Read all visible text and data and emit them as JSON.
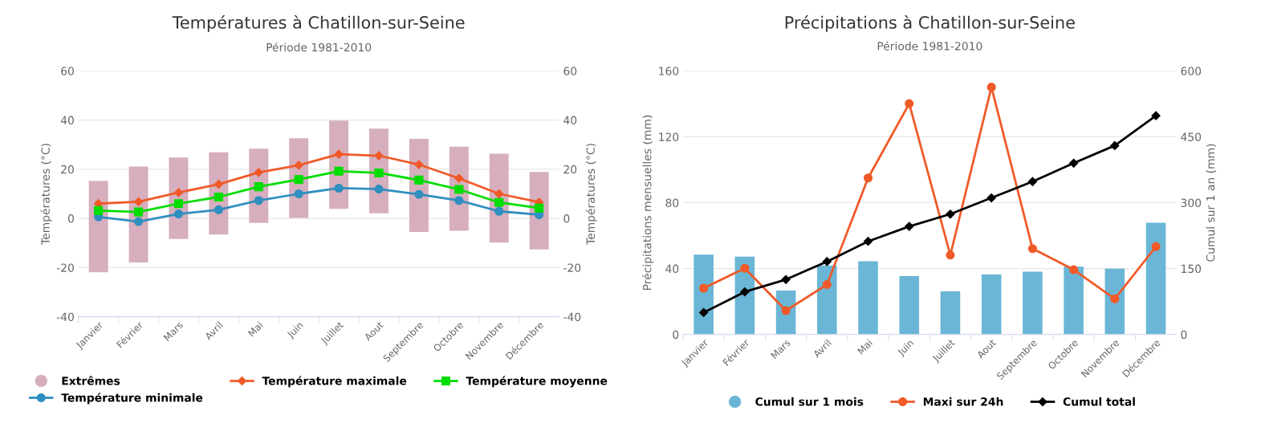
{
  "chart_data": [
    {
      "type": "bar",
      "title": "Températures à Chatillon-sur-Seine",
      "subtitle": "Période 1981-2010",
      "ylabel": "Températures (°C)",
      "y2label": "Températures (°C)",
      "categories": [
        "Janvier",
        "Février",
        "Mars",
        "Avril",
        "Mai",
        "Juin",
        "Juillet",
        "Aout",
        "Septembre",
        "Octobre",
        "Novembre",
        "Décembre"
      ],
      "ylim": [
        -40,
        60
      ],
      "yticks": [
        -40,
        -20,
        0,
        20,
        40,
        60
      ],
      "y2lim": [
        -40,
        60
      ],
      "y2ticks": [
        -40,
        -20,
        0,
        20,
        40,
        60
      ],
      "grid": "y",
      "legend": "bottom",
      "series": [
        {
          "name": "Extrêmes",
          "color": "#d6aebd",
          "base": [
            -21.9,
            -17.9,
            -8.4,
            -6.6,
            -1.8,
            0.2,
            3.9,
            2.1,
            -5.5,
            -5.0,
            -9.8,
            -12.6
          ],
          "values": [
            37.1,
            39.0,
            33.2,
            33.5,
            30.2,
            32.4,
            35.9,
            34.4,
            37.9,
            34.2,
            36.1,
            31.5
          ]
        },
        {
          "name": "Température minimale",
          "type": "line",
          "marker": "circle",
          "color": "#2f8fc0",
          "values": [
            0.6,
            -1.3,
            1.8,
            3.5,
            7.3,
            10.0,
            12.3,
            11.9,
            9.8,
            7.3,
            2.9,
            1.5
          ]
        },
        {
          "name": "Température maximale",
          "type": "line",
          "marker": "diamond",
          "color": "#f05a28",
          "values": [
            6.0,
            6.8,
            10.5,
            13.9,
            18.7,
            21.6,
            26.1,
            25.5,
            21.9,
            16.3,
            10.0,
            6.6
          ]
        },
        {
          "name": "Température moyenne",
          "type": "line",
          "marker": "square",
          "color": "#00dd00",
          "values": [
            3.2,
            2.6,
            6.0,
            8.7,
            12.9,
            15.8,
            19.2,
            18.5,
            15.6,
            11.8,
            6.5,
            4.2
          ]
        }
      ]
    },
    {
      "type": "bar",
      "title": "Précipitations à Chatillon-sur-Seine",
      "subtitle": "Période 1981-2010",
      "ylabel": "Précipitations mensuelles (mm)",
      "y2label": "Cumul sur 1 an (mm)",
      "categories": [
        "Janvier",
        "Février",
        "Mars",
        "Avril",
        "Mai",
        "Juin",
        "Juillet",
        "Aout",
        "Septembre",
        "Octobre",
        "Novembre",
        "Décembre"
      ],
      "ylim": [
        0,
        160
      ],
      "yticks": [
        0,
        40,
        80,
        120,
        160
      ],
      "y2lim": [
        0,
        600
      ],
      "y2ticks": [
        0,
        150,
        300,
        450,
        600
      ],
      "grid": "y",
      "legend": "bottom",
      "series": [
        {
          "name": "Cumul sur 1 mois",
          "color": "#6bb6d6",
          "values": [
            48.5,
            47.3,
            26.7,
            41.9,
            44.4,
            35.4,
            26.2,
            36.4,
            38.1,
            41.2,
            40.0,
            67.9
          ]
        },
        {
          "name": "Maxi sur 24h",
          "type": "line",
          "marker": "circle",
          "color": "#f05a28",
          "values": [
            28.1,
            40.2,
            14.5,
            30.3,
            95.0,
            140.1,
            48.2,
            150.1,
            52.1,
            39.3,
            21.6,
            53.3
          ]
        },
        {
          "name": "Cumul total",
          "type": "line",
          "marker": "diamond",
          "axis": "y2",
          "color": "#000000",
          "values": [
            50,
            97,
            125,
            166,
            212,
            246,
            274,
            311,
            348,
            390,
            430,
            498
          ]
        }
      ]
    }
  ]
}
